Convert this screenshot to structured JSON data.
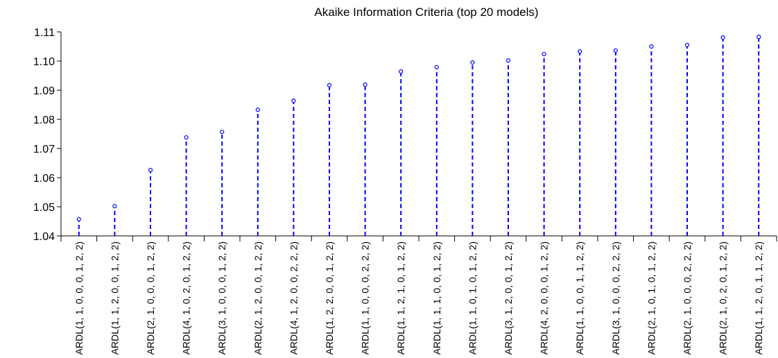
{
  "chart_data": {
    "type": "stem",
    "title": "Akaike Information Criteria (top 20 models)",
    "categories": [
      "ARDL(1, 1, 0, 0, 0, 1, 2, 2)",
      "ARDL(1, 1, 2, 0, 0, 1, 2, 2)",
      "ARDL(2, 1, 0, 0, 0, 1, 2, 2)",
      "ARDL(4, 1, 0, 2, 0, 1, 2, 2)",
      "ARDL(3, 1, 0, 0, 0, 1, 2, 2)",
      "ARDL(2, 1, 2, 0, 0, 1, 2, 2)",
      "ARDL(4, 1, 2, 0, 0, 2, 2, 2)",
      "ARDL(1, 2, 2, 0, 0, 1, 2, 2)",
      "ARDL(1, 1, 0, 0, 0, 2, 2, 2)",
      "ARDL(1, 1, 2, 1, 0, 1, 2, 2)",
      "ARDL(1, 1, 1, 0, 0, 1, 2, 2)",
      "ARDL(1, 1, 0, 1, 0, 1, 2, 2)",
      "ARDL(3, 1, 2, 0, 0, 1, 2, 2)",
      "ARDL(4, 2, 0, 0, 0, 1, 2, 2)",
      "ARDL(1, 1, 0, 0, 1, 1, 2, 2)",
      "ARDL(3, 1, 0, 0, 0, 2, 2, 2)",
      "ARDL(2, 1, 0, 1, 0, 1, 2, 2)",
      "ARDL(2, 1, 0, 0, 0, 2, 2, 2)",
      "ARDL(2, 1, 0, 2, 0, 1, 2, 2)",
      "ARDL(1, 1, 2, 0, 1, 1, 2, 2)"
    ],
    "values": [
      1.0457,
      1.0502,
      1.0626,
      1.0738,
      1.0757,
      1.0833,
      1.0864,
      1.0917,
      1.0919,
      1.0964,
      1.0979,
      1.0995,
      1.1002,
      1.1024,
      1.1033,
      1.1036,
      1.105,
      1.1055,
      1.1081,
      1.1083
    ],
    "color": "#0000ff",
    "ylim": [
      1.04,
      1.11
    ],
    "yticks": [
      1.04,
      1.05,
      1.06,
      1.07,
      1.08,
      1.09,
      {
        "value": 1.1,
        "label": "1.10"
      },
      1.11
    ]
  }
}
